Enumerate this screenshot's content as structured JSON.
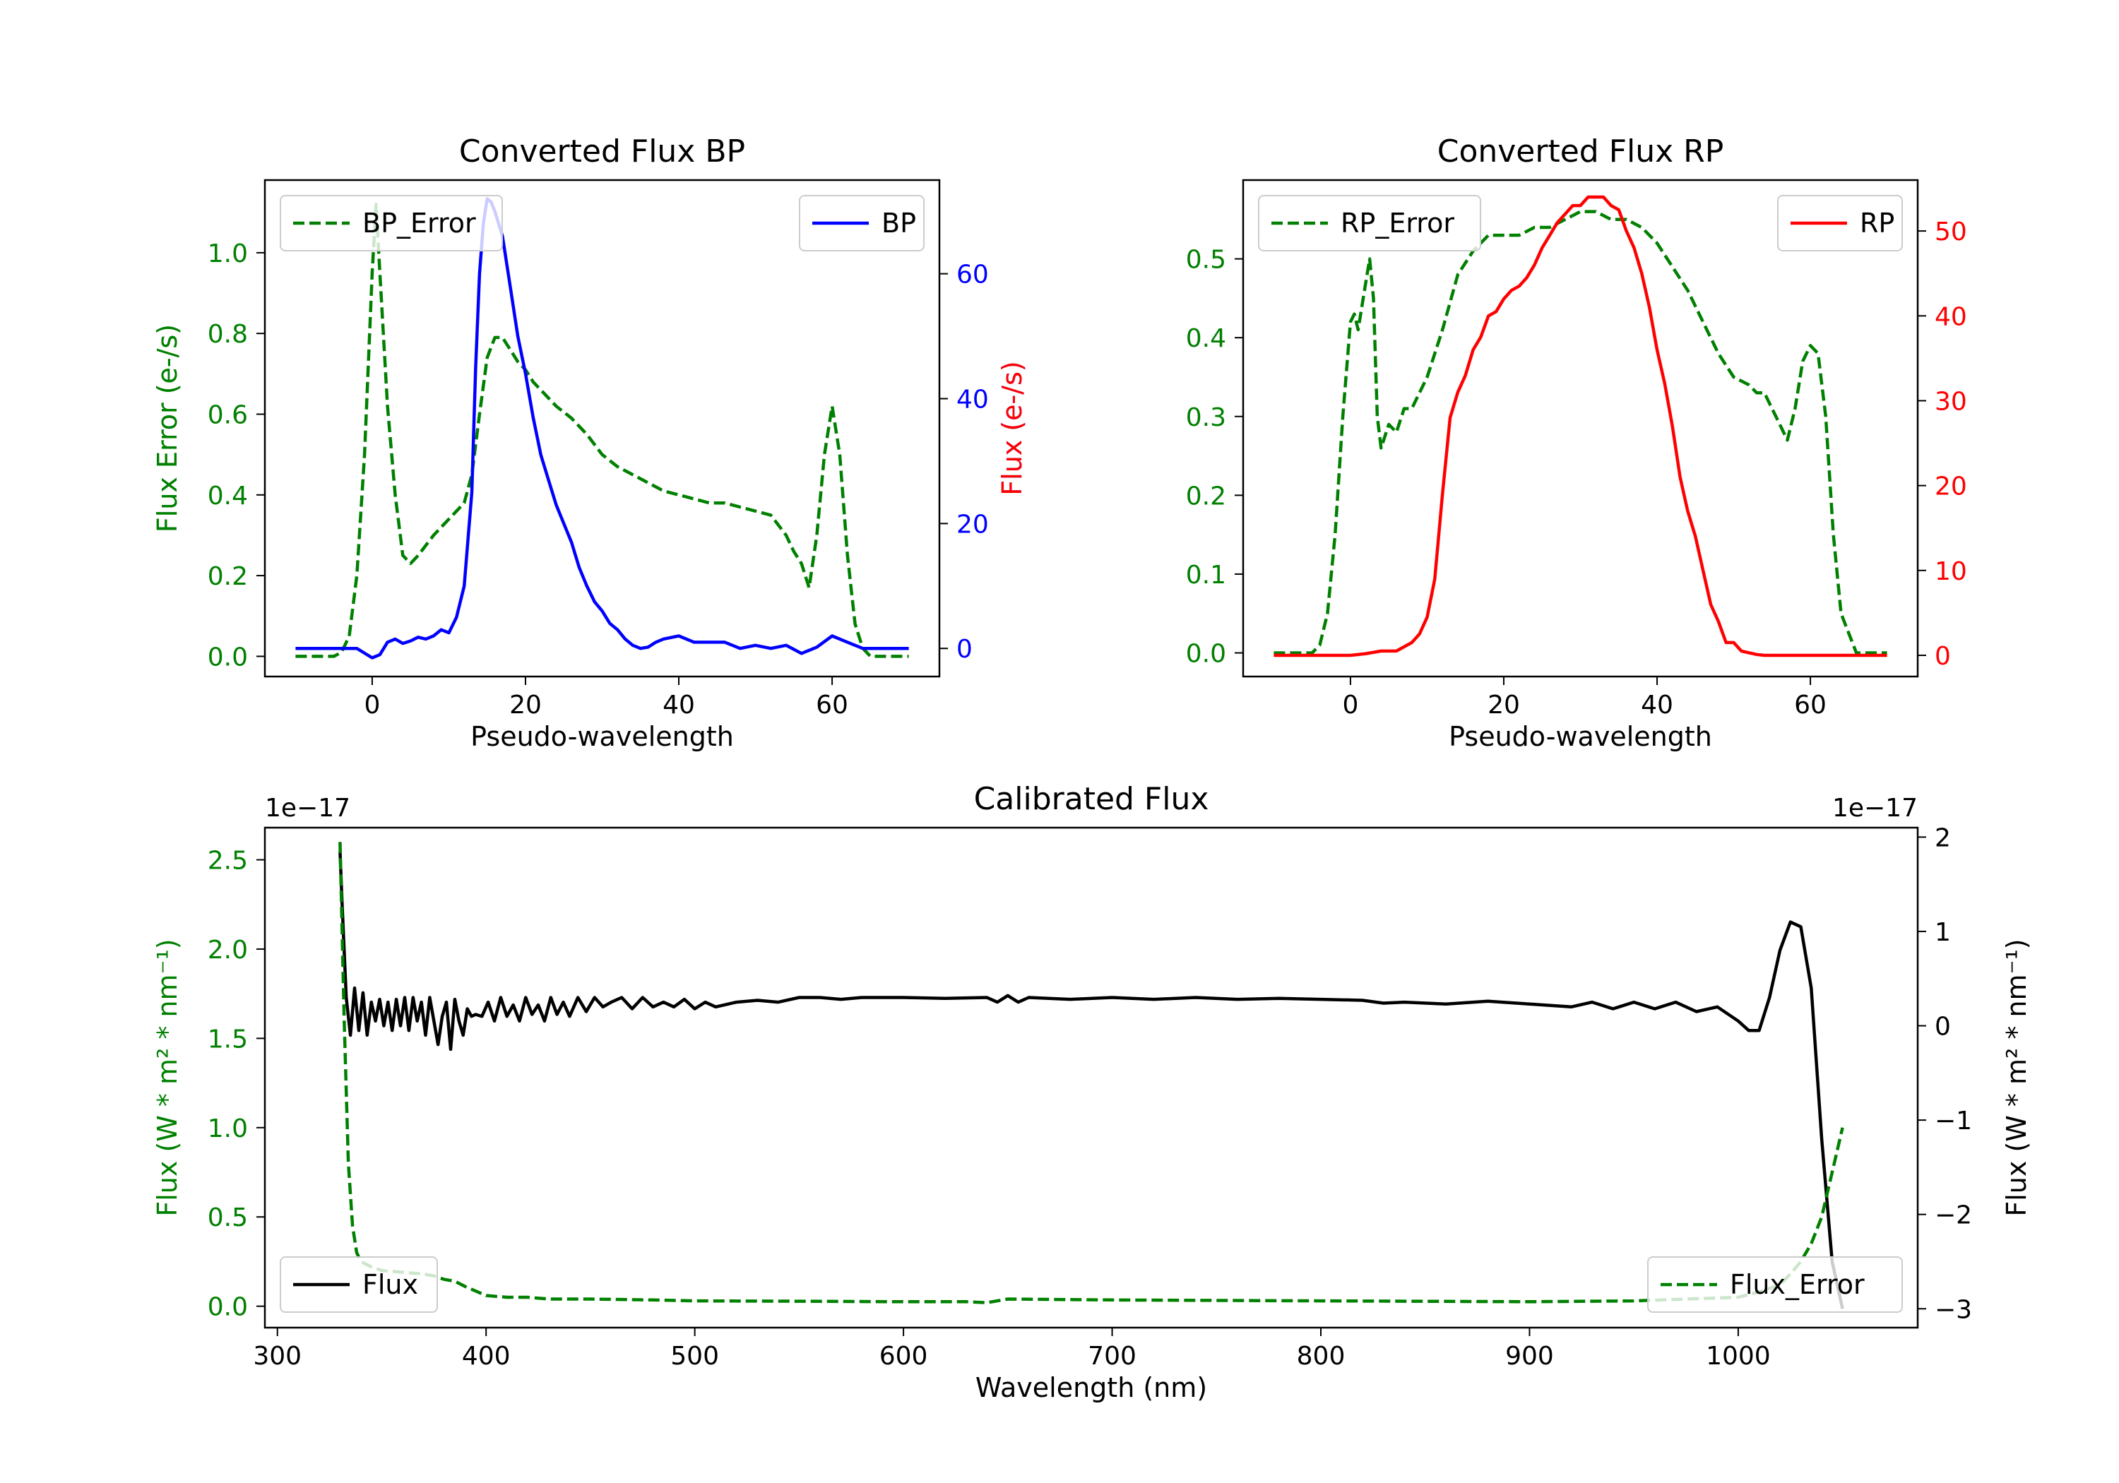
{
  "figure": {
    "background": "#ffffff"
  },
  "chart_data": [
    {
      "id": "bp",
      "type": "line",
      "title": "Converted Flux BP",
      "xlabel": "Pseudo-wavelength",
      "xlim": [
        -14,
        74
      ],
      "xticks": [
        0,
        20,
        40,
        60
      ],
      "left_axis": {
        "label": "Flux Error (e-/s)",
        "color": "#008000",
        "ylim": [
          -0.05,
          1.18
        ],
        "ticks": [
          "0.0",
          "0.2",
          "0.4",
          "0.6",
          "0.8",
          "1.0"
        ]
      },
      "right_axis": {
        "label": "Flux (e-/s)",
        "color": "#0000ff",
        "ylim": [
          -4.5,
          75
        ],
        "ticks": [
          "0",
          "20",
          "40",
          "60"
        ]
      },
      "legend_left": {
        "label": "BP_Error",
        "position": "upper-left"
      },
      "legend_right": {
        "label": "BP",
        "position": "upper-right"
      },
      "series": [
        {
          "name": "BP_Error",
          "axis": "left",
          "color": "#008000",
          "dashed": true,
          "x": [
            -10,
            -5,
            -4,
            -3,
            -2,
            -1,
            0,
            0.5,
            1,
            2,
            3,
            4,
            5,
            6,
            8,
            10,
            12,
            13,
            14,
            15,
            16,
            17,
            18,
            19,
            20,
            21,
            22,
            24,
            26,
            28,
            30,
            32,
            34,
            36,
            38,
            40,
            42,
            44,
            46,
            48,
            50,
            52,
            54,
            55,
            56,
            57,
            58,
            59,
            60,
            61,
            62,
            63,
            64,
            65,
            66,
            68,
            70
          ],
          "y": [
            0,
            0,
            0.01,
            0.05,
            0.2,
            0.5,
            0.95,
            1.12,
            0.95,
            0.62,
            0.4,
            0.25,
            0.23,
            0.25,
            0.3,
            0.34,
            0.38,
            0.45,
            0.6,
            0.74,
            0.79,
            0.79,
            0.76,
            0.73,
            0.71,
            0.68,
            0.66,
            0.62,
            0.59,
            0.55,
            0.5,
            0.47,
            0.45,
            0.43,
            0.41,
            0.4,
            0.39,
            0.38,
            0.38,
            0.37,
            0.36,
            0.35,
            0.3,
            0.26,
            0.23,
            0.17,
            0.3,
            0.5,
            0.62,
            0.5,
            0.25,
            0.08,
            0.02,
            0,
            0,
            0,
            0
          ]
        },
        {
          "name": "BP",
          "axis": "right",
          "color": "#0000ff",
          "dashed": false,
          "x": [
            -10,
            -5,
            -2,
            0,
            1,
            2,
            3,
            4,
            5,
            6,
            7,
            8,
            9,
            10,
            11,
            12,
            13,
            13.5,
            14,
            14.5,
            15,
            15.5,
            16,
            17,
            18,
            19,
            20,
            21,
            22,
            23,
            24,
            25,
            26,
            27,
            28,
            29,
            30,
            31,
            32,
            33,
            34,
            35,
            36,
            37,
            38,
            40,
            42,
            44,
            46,
            48,
            50,
            52,
            54,
            56,
            58,
            60,
            62,
            64,
            66,
            68,
            70
          ],
          "y": [
            0,
            0,
            0,
            -1.5,
            -1,
            1,
            1.5,
            0.8,
            1.2,
            1.8,
            1.5,
            2,
            3,
            2.5,
            5,
            10,
            25,
            45,
            60,
            68,
            72,
            71.5,
            70,
            66,
            58,
            50,
            44,
            37,
            31,
            27,
            23,
            20,
            17,
            13,
            10,
            7.5,
            6,
            4,
            3,
            1.5,
            0.5,
            0,
            0.2,
            1,
            1.5,
            2,
            1,
            1,
            1,
            0,
            0.5,
            0,
            0.5,
            -0.8,
            0.2,
            2,
            1,
            0,
            0,
            0,
            0
          ]
        }
      ]
    },
    {
      "id": "rp",
      "type": "line",
      "title": "Converted Flux RP",
      "xlabel": "Pseudo-wavelength",
      "xlim": [
        -14,
        74
      ],
      "xticks": [
        0,
        20,
        40,
        60
      ],
      "left_axis": {
        "label": "Flux Error (e-/s)",
        "color": "#008000",
        "ylim": [
          -0.03,
          0.6
        ],
        "ticks": [
          "0.0",
          "0.1",
          "0.2",
          "0.3",
          "0.4",
          "0.5"
        ]
      },
      "right_axis": {
        "label": "Flux (e-/s)",
        "color": "#ff0000",
        "ylim": [
          -2.5,
          56
        ],
        "ticks": [
          "0",
          "10",
          "20",
          "30",
          "40",
          "50"
        ]
      },
      "legend_left": {
        "label": "RP_Error",
        "position": "upper-left"
      },
      "legend_right": {
        "label": "RP",
        "position": "upper-right"
      },
      "series": [
        {
          "name": "RP_Error",
          "axis": "left",
          "color": "#008000",
          "dashed": true,
          "x": [
            -10,
            -5,
            -4,
            -3,
            -2,
            -1,
            0,
            0.5,
            1,
            1.5,
            2,
            2.5,
            3,
            3.5,
            4,
            5,
            6,
            7,
            8,
            9,
            10,
            12,
            14,
            16,
            18,
            20,
            22,
            24,
            26,
            28,
            30,
            32,
            34,
            36,
            38,
            40,
            42,
            44,
            46,
            48,
            50,
            52,
            53,
            54,
            55,
            56,
            57,
            58,
            59,
            60,
            61,
            62,
            63,
            64,
            66,
            68,
            70
          ],
          "y": [
            0,
            0,
            0.01,
            0.05,
            0.15,
            0.3,
            0.42,
            0.43,
            0.41,
            0.44,
            0.47,
            0.5,
            0.45,
            0.3,
            0.26,
            0.29,
            0.28,
            0.31,
            0.31,
            0.33,
            0.35,
            0.41,
            0.48,
            0.51,
            0.53,
            0.53,
            0.53,
            0.54,
            0.54,
            0.55,
            0.56,
            0.56,
            0.55,
            0.55,
            0.54,
            0.52,
            0.49,
            0.46,
            0.42,
            0.38,
            0.35,
            0.34,
            0.33,
            0.33,
            0.31,
            0.29,
            0.27,
            0.31,
            0.37,
            0.39,
            0.38,
            0.3,
            0.15,
            0.05,
            0,
            0,
            0
          ]
        },
        {
          "name": "RP",
          "axis": "right",
          "color": "#ff0000",
          "dashed": false,
          "x": [
            -10,
            -5,
            -2,
            0,
            2,
            4,
            6,
            8,
            9,
            10,
            11,
            12,
            13,
            14,
            15,
            16,
            17,
            18,
            19,
            20,
            21,
            22,
            23,
            24,
            25,
            26,
            27,
            28,
            29,
            30,
            31,
            32,
            33,
            34,
            35,
            36,
            37,
            38,
            39,
            40,
            41,
            42,
            43,
            44,
            45,
            46,
            47,
            48,
            49,
            50,
            51,
            52,
            53,
            54,
            55,
            56,
            57,
            58,
            60,
            62,
            64,
            66,
            68,
            70
          ],
          "y": [
            0,
            0,
            0,
            0,
            0.2,
            0.5,
            0.5,
            1.5,
            2.5,
            4.5,
            9,
            19,
            28,
            31,
            33,
            36,
            37.5,
            40,
            40.5,
            42,
            43,
            43.5,
            44.5,
            46,
            48,
            49.5,
            51,
            52,
            53,
            53,
            54,
            54,
            54,
            53,
            52.5,
            50,
            48,
            45,
            41,
            36,
            32,
            27,
            21,
            17,
            14,
            10,
            6,
            4,
            1.5,
            1.5,
            0.5,
            0.3,
            0.1,
            0,
            0,
            0,
            0,
            0,
            0,
            0,
            0,
            0,
            0,
            0
          ]
        }
      ]
    },
    {
      "id": "calibrated",
      "type": "line",
      "title": "Calibrated Flux",
      "xlabel": "Wavelength (nm)",
      "xlim": [
        294,
        1086
      ],
      "xticks": [
        300,
        400,
        500,
        600,
        700,
        800,
        900,
        1000
      ],
      "left_axis": {
        "label": "Flux (W * m² * nm⁻¹)",
        "color": "#008000",
        "ylim": [
          -0.12,
          2.68
        ],
        "ticks": [
          "0.0",
          "0.5",
          "1.0",
          "1.5",
          "2.0",
          "2.5"
        ],
        "offset": "1e−17"
      },
      "right_axis": {
        "label": "Flux (W * m² * nm⁻¹)",
        "color": "#000000",
        "ylim": [
          -3.2,
          2.1
        ],
        "ticks": [
          "−3",
          "−2",
          "−1",
          "0",
          "1",
          "2"
        ],
        "offset": "1e−17"
      },
      "legend_left": {
        "label": "Flux",
        "position": "lower-left"
      },
      "legend_right": {
        "label": "Flux_Error",
        "position": "lower-right"
      },
      "series": [
        {
          "name": "Flux",
          "axis": "right",
          "color": "#000000",
          "dashed": false,
          "x": [
            330,
            331,
            333,
            335,
            337,
            339,
            341,
            343,
            345,
            347,
            349,
            351,
            353,
            355,
            357,
            359,
            361,
            363,
            365,
            367,
            369,
            371,
            373,
            375,
            377,
            379,
            381,
            383,
            385,
            387,
            389,
            391,
            393,
            395,
            398,
            401,
            404,
            407,
            410,
            413,
            416,
            419,
            422,
            425,
            428,
            431,
            434,
            437,
            440,
            444,
            448,
            452,
            456,
            460,
            465,
            470,
            475,
            480,
            485,
            490,
            495,
            500,
            505,
            510,
            520,
            530,
            540,
            550,
            560,
            570,
            580,
            600,
            620,
            640,
            645,
            650,
            655,
            660,
            680,
            700,
            720,
            740,
            760,
            780,
            800,
            820,
            830,
            840,
            860,
            880,
            900,
            920,
            930,
            940,
            950,
            960,
            970,
            980,
            990,
            1000,
            1005,
            1010,
            1015,
            1020,
            1025,
            1030,
            1035,
            1040,
            1045,
            1050
          ],
          "y": [
            1.85,
            1.3,
            0.3,
            -0.1,
            0.4,
            -0.05,
            0.35,
            -0.1,
            0.25,
            0.05,
            0.28,
            0.0,
            0.25,
            -0.05,
            0.28,
            0.0,
            0.3,
            -0.05,
            0.3,
            0.05,
            0.25,
            -0.1,
            0.3,
            0.05,
            -0.2,
            0.1,
            0.25,
            -0.25,
            0.28,
            0.05,
            -0.1,
            0.18,
            0.1,
            0.12,
            0.1,
            0.25,
            0.05,
            0.3,
            0.1,
            0.22,
            0.05,
            0.3,
            0.12,
            0.22,
            0.05,
            0.3,
            0.12,
            0.25,
            0.1,
            0.3,
            0.15,
            0.3,
            0.2,
            0.25,
            0.3,
            0.18,
            0.3,
            0.2,
            0.25,
            0.2,
            0.28,
            0.18,
            0.25,
            0.2,
            0.25,
            0.27,
            0.25,
            0.3,
            0.3,
            0.28,
            0.3,
            0.3,
            0.29,
            0.3,
            0.25,
            0.32,
            0.25,
            0.3,
            0.28,
            0.3,
            0.28,
            0.3,
            0.28,
            0.29,
            0.28,
            0.27,
            0.24,
            0.25,
            0.23,
            0.26,
            0.23,
            0.2,
            0.25,
            0.18,
            0.25,
            0.18,
            0.25,
            0.15,
            0.2,
            0.05,
            -0.05,
            -0.05,
            0.3,
            0.8,
            1.1,
            1.05,
            0.4,
            -1.2,
            -2.5,
            -3.0
          ]
        },
        {
          "name": "Flux_Error",
          "axis": "left",
          "color": "#008000",
          "dashed": true,
          "x": [
            330,
            332,
            334,
            336,
            338,
            340,
            345,
            350,
            360,
            370,
            375,
            380,
            385,
            390,
            400,
            410,
            420,
            430,
            450,
            480,
            500,
            550,
            600,
            630,
            640,
            650,
            700,
            800,
            900,
            950,
            1000,
            1010,
            1020,
            1025,
            1030,
            1035,
            1040,
            1045,
            1050
          ],
          "y": [
            2.6,
            1.6,
            0.8,
            0.45,
            0.3,
            0.25,
            0.22,
            0.2,
            0.19,
            0.18,
            0.17,
            0.15,
            0.14,
            0.11,
            0.06,
            0.05,
            0.05,
            0.04,
            0.04,
            0.035,
            0.03,
            0.028,
            0.025,
            0.025,
            0.02,
            0.04,
            0.035,
            0.03,
            0.025,
            0.03,
            0.05,
            0.08,
            0.12,
            0.18,
            0.25,
            0.35,
            0.5,
            0.75,
            1.0
          ]
        }
      ]
    }
  ]
}
